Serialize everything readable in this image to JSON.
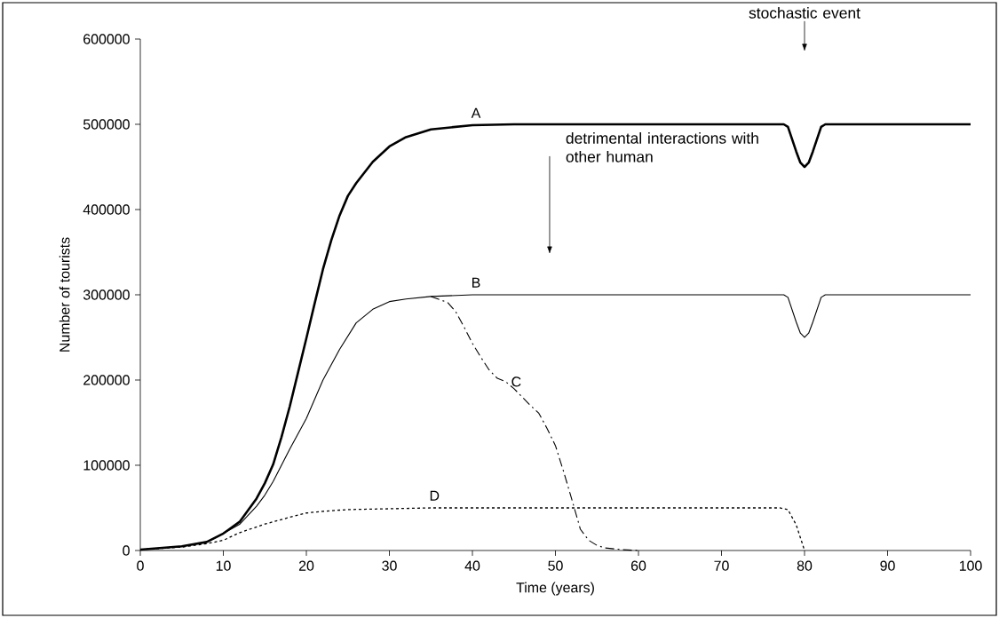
{
  "chart_data": {
    "type": "line",
    "xlabel": "Time (years)",
    "ylabel": "Number of tourists",
    "xlim": [
      0,
      100
    ],
    "ylim": [
      0,
      600000
    ],
    "xticks": [
      0,
      10,
      20,
      30,
      40,
      50,
      60,
      70,
      80,
      90,
      100
    ],
    "yticks": [
      0,
      100000,
      200000,
      300000,
      400000,
      500000,
      600000
    ],
    "grid": false,
    "legend": false,
    "marker": "none",
    "series": [
      {
        "name": "A",
        "color": "#000000",
        "line_style": "solid",
        "x": [
          0,
          5,
          8,
          10,
          12,
          14,
          15,
          16,
          17,
          18,
          19,
          20,
          21,
          22,
          23,
          24,
          25,
          26,
          28,
          30,
          32,
          35,
          40,
          45,
          77.5,
          78,
          79,
          79.5,
          80,
          80.5,
          81,
          82,
          82.5,
          100
        ],
        "values": [
          1000,
          5000,
          10000,
          20000,
          34000,
          61000,
          79000,
          101000,
          133000,
          169000,
          209000,
          249000,
          290000,
          330000,
          364000,
          393000,
          416000,
          431000,
          456000,
          474000,
          485000,
          494000,
          499000,
          500000,
          500000,
          497000,
          468000,
          455000,
          450000,
          455000,
          468000,
          497000,
          500000,
          500000
        ]
      },
      {
        "name": "B",
        "color": "#000000",
        "line_style": "solid",
        "x": [
          0,
          5,
          8,
          10,
          12,
          14,
          15,
          16,
          18,
          20,
          22,
          24,
          26,
          28,
          30,
          32,
          35,
          40,
          77.5,
          78,
          79,
          79.5,
          80,
          80.5,
          81,
          82,
          82.5,
          100
        ],
        "values": [
          1000,
          5000,
          10000,
          20000,
          31000,
          52000,
          65000,
          81000,
          119000,
          155000,
          200000,
          236000,
          267000,
          283000,
          292000,
          295000,
          298000,
          300000,
          300000,
          297000,
          268000,
          255000,
          250000,
          255000,
          268000,
          297000,
          300000,
          300000
        ]
      },
      {
        "name": "C",
        "color": "#000000",
        "line_style": "dashed",
        "x": [
          35,
          37,
          38,
          39,
          40,
          41,
          42,
          43,
          44,
          45,
          46,
          47,
          48,
          49,
          50,
          51,
          52,
          53,
          54,
          55,
          56,
          58,
          60
        ],
        "values": [
          298000,
          291000,
          280000,
          262000,
          243000,
          227000,
          212000,
          202000,
          198000,
          190000,
          180000,
          170000,
          161000,
          143000,
          123000,
          92000,
          59000,
          25000,
          12000,
          6000,
          3000,
          1000,
          0
        ]
      },
      {
        "name": "D",
        "color": "#000000",
        "line_style": "dotted",
        "x": [
          0,
          5,
          8,
          10,
          12,
          15,
          18,
          20,
          22,
          25,
          30,
          35,
          77,
          78,
          79,
          80
        ],
        "values": [
          1000,
          4000,
          8000,
          12000,
          21000,
          31000,
          39000,
          44000,
          46000,
          48000,
          49000,
          50000,
          50000,
          48000,
          30000,
          0
        ]
      }
    ],
    "annotations": [
      "stochastic event",
      "detrimental interactions with other human"
    ]
  }
}
